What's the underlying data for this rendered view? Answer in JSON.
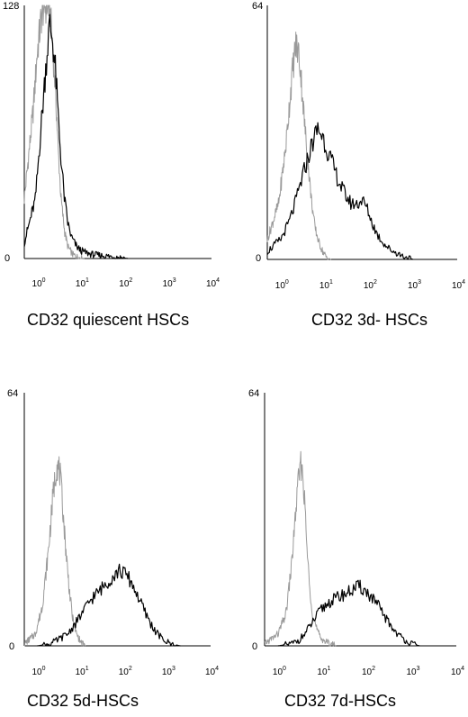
{
  "chart_data": [
    {
      "type": "line",
      "title": "CD32 quiescent HSCs",
      "x_scale": "log",
      "xlim": [
        0.5,
        10000
      ],
      "x_ticks": [
        1,
        10,
        100,
        1000,
        10000
      ],
      "x_tick_base": "10",
      "x_tick_exps": [
        "0",
        "1",
        "2",
        "3",
        "4"
      ],
      "ylim": [
        0,
        128
      ],
      "y_tick_max": "128",
      "y_tick_min": "0",
      "series": [
        {
          "color": "#9a9a9a",
          "style": "isotype-control",
          "x": [
            0.5,
            0.8,
            1.0,
            1.3,
            1.6,
            1.9,
            2.2,
            2.6,
            3.0,
            3.5,
            4.2,
            5.0,
            6.5,
            9.0,
            12
          ],
          "y": [
            30,
            75,
            105,
            126,
            128,
            127,
            110,
            85,
            55,
            30,
            14,
            6,
            2,
            0.5,
            0
          ]
        },
        {
          "color": "#000000",
          "style": "CD32",
          "x": [
            0.5,
            0.9,
            1.2,
            1.6,
            1.9,
            2.2,
            2.6,
            3.0,
            3.5,
            4.2,
            5.0,
            6.0,
            8.0,
            10,
            15,
            20,
            30,
            50,
            80,
            120
          ],
          "y": [
            8,
            30,
            65,
            100,
            118,
            112,
            95,
            72,
            50,
            30,
            18,
            11,
            6,
            4,
            2.5,
            2,
            1.5,
            1,
            0.5,
            0
          ]
        }
      ]
    },
    {
      "type": "line",
      "title": "CD32 3d- HSCs",
      "x_scale": "log",
      "xlim": [
        0.5,
        10000
      ],
      "x_ticks": [
        1,
        10,
        100,
        1000,
        10000
      ],
      "x_tick_base": "10",
      "x_tick_exps": [
        "0",
        "1",
        "2",
        "3",
        "4"
      ],
      "ylim": [
        0,
        64
      ],
      "y_tick_max": "64",
      "y_tick_min": "0",
      "series": [
        {
          "color": "#9a9a9a",
          "style": "isotype-control",
          "x": [
            0.5,
            0.9,
            1.3,
            1.8,
            2.2,
            2.6,
            3.0,
            3.5,
            4.2,
            5.0,
            6.0,
            7.5,
            9.0,
            11,
            14
          ],
          "y": [
            5,
            14,
            28,
            46,
            54,
            52,
            44,
            34,
            24,
            15,
            8,
            4,
            2,
            0.5,
            0
          ]
        },
        {
          "color": "#000000",
          "style": "CD32",
          "x": [
            0.5,
            1.0,
            1.5,
            2.0,
            3.0,
            4.0,
            5.5,
            7.0,
            9.0,
            12,
            16,
            22,
            30,
            40,
            55,
            70,
            90,
            120,
            160,
            220,
            300,
            450,
            700,
            1000
          ],
          "y": [
            2,
            5,
            9,
            13,
            20,
            25,
            30,
            33,
            31,
            27,
            23,
            19,
            16,
            14,
            14,
            15,
            13,
            9,
            6,
            4,
            2.5,
            1.5,
            0.5,
            0
          ]
        }
      ]
    },
    {
      "type": "line",
      "title": "CD32 5d-HSCs",
      "x_scale": "log",
      "xlim": [
        0.5,
        10000
      ],
      "x_ticks": [
        1,
        10,
        100,
        1000,
        10000
      ],
      "x_tick_base": "10",
      "x_tick_exps": [
        "0",
        "1",
        "2",
        "3",
        "4"
      ],
      "ylim": [
        0,
        64
      ],
      "y_tick_max": "64",
      "y_tick_min": "0",
      "series": [
        {
          "color": "#9a9a9a",
          "style": "isotype-control",
          "x": [
            0.5,
            0.9,
            1.3,
            1.8,
            2.3,
            2.8,
            3.3,
            3.8,
            4.5,
            5.5,
            6.5,
            8.0,
            10,
            13
          ],
          "y": [
            0.5,
            3,
            10,
            24,
            38,
            46,
            44,
            36,
            25,
            14,
            7,
            3,
            1,
            0
          ]
        },
        {
          "color": "#000000",
          "style": "CD32",
          "x": [
            1,
            2,
            3,
            5,
            8,
            12,
            18,
            28,
            40,
            60,
            80,
            110,
            150,
            220,
            320,
            500,
            800,
            1200,
            2000
          ],
          "y": [
            0,
            0.5,
            1.5,
            3,
            6,
            9,
            12,
            14,
            16,
            18,
            19,
            18,
            16,
            12,
            8,
            4,
            1.5,
            0.5,
            0
          ]
        }
      ]
    },
    {
      "type": "line",
      "title": "CD32 7d-HSCs",
      "x_scale": "log",
      "xlim": [
        0.5,
        10000
      ],
      "x_ticks": [
        1,
        10,
        100,
        1000,
        10000
      ],
      "x_tick_base": "10",
      "x_tick_exps": [
        "0",
        "1",
        "2",
        "3",
        "4"
      ],
      "ylim": [
        0,
        64
      ],
      "y_tick_max": "64",
      "y_tick_min": "0",
      "series": [
        {
          "color": "#9a9a9a",
          "style": "isotype-control",
          "x": [
            0.5,
            1.0,
            1.5,
            2.0,
            2.5,
            3.0,
            3.4,
            3.8,
            4.3,
            5.0,
            6.0,
            7.5,
            9.0,
            12,
            16,
            20
          ],
          "y": [
            0.5,
            3,
            8,
            20,
            34,
            44,
            46,
            40,
            28,
            16,
            8,
            4,
            2,
            1,
            0.5,
            0
          ]
        },
        {
          "color": "#000000",
          "style": "CD32",
          "x": [
            1,
            2,
            3,
            4,
            6,
            9,
            14,
            20,
            30,
            45,
            65,
            90,
            130,
            180,
            260,
            400,
            600,
            1000,
            1500
          ],
          "y": [
            0,
            0.5,
            1.5,
            3,
            6,
            9,
            11,
            12,
            13,
            14,
            15,
            14,
            12,
            10,
            7,
            4,
            2,
            0.5,
            0
          ]
        }
      ]
    }
  ]
}
